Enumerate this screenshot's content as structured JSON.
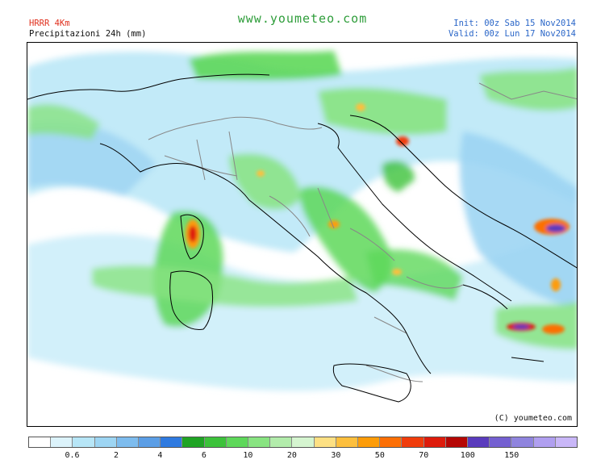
{
  "header": {
    "model": "HRRR 4Km",
    "product": "Precipitazioni 24h (mm)",
    "site": "www.youmeteo.com",
    "init": "Init: 00z Sab  15 Nov2014",
    "valid": "Valid: 00z Lun  17 Nov2014"
  },
  "map": {
    "copyright": "(C) youmeteo.com",
    "coast_color": "#000000",
    "border_color": "#888888"
  },
  "legend": {
    "colors": [
      "#ffffff",
      "#dcf3fb",
      "#b7e6f7",
      "#9dd5f3",
      "#7dbcee",
      "#5b9ee6",
      "#2f7ae0",
      "#1fa424",
      "#3cc23a",
      "#5ed85a",
      "#88e481",
      "#b2ecab",
      "#d5f5d0",
      "#fde083",
      "#fdbf3d",
      "#fd9c08",
      "#fc6f05",
      "#f03c0b",
      "#de1b0b",
      "#b50604",
      "#5a3bbd",
      "#7460d1",
      "#8f84de",
      "#b09ff0",
      "#c9b7f8"
    ],
    "ticks": [
      "0.6",
      "2",
      "4",
      "6",
      "10",
      "20",
      "30",
      "50",
      "70",
      "100",
      "150"
    ]
  }
}
